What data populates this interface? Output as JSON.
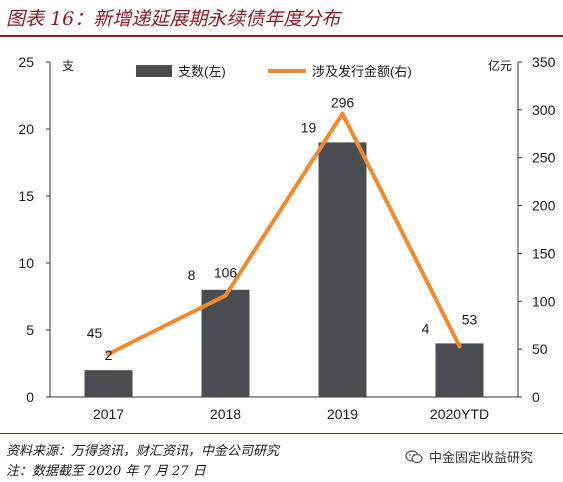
{
  "header": {
    "title": "图表 16：新增递延展期永续债年度分布"
  },
  "footer": {
    "source": "资料来源：万得资讯，财汇资讯，中金公司研究",
    "note": "注：数据截至 2020 年 7 月 27 日",
    "watermark": "中金固定收益研究"
  },
  "chart_data": {
    "type": "bar+line",
    "categories": [
      "2017",
      "2018",
      "2019",
      "2020YTD"
    ],
    "series": [
      {
        "name": "支数(左)",
        "kind": "bar",
        "axis": "left",
        "values": [
          2,
          8,
          19,
          4
        ],
        "color": "#4a4d52"
      },
      {
        "name": "涉及发行金额(右)",
        "kind": "line",
        "axis": "right",
        "values": [
          45,
          106,
          296,
          53
        ],
        "color": "#f08a30"
      }
    ],
    "left_axis": {
      "unit": "支",
      "min": 0,
      "max": 25,
      "ticks": [
        0,
        5,
        10,
        15,
        20,
        25
      ]
    },
    "right_axis": {
      "unit": "亿元",
      "min": 0,
      "max": 350,
      "ticks": [
        0,
        50,
        100,
        150,
        200,
        250,
        300,
        350
      ]
    },
    "legend_position": "top-center",
    "grid": false
  }
}
